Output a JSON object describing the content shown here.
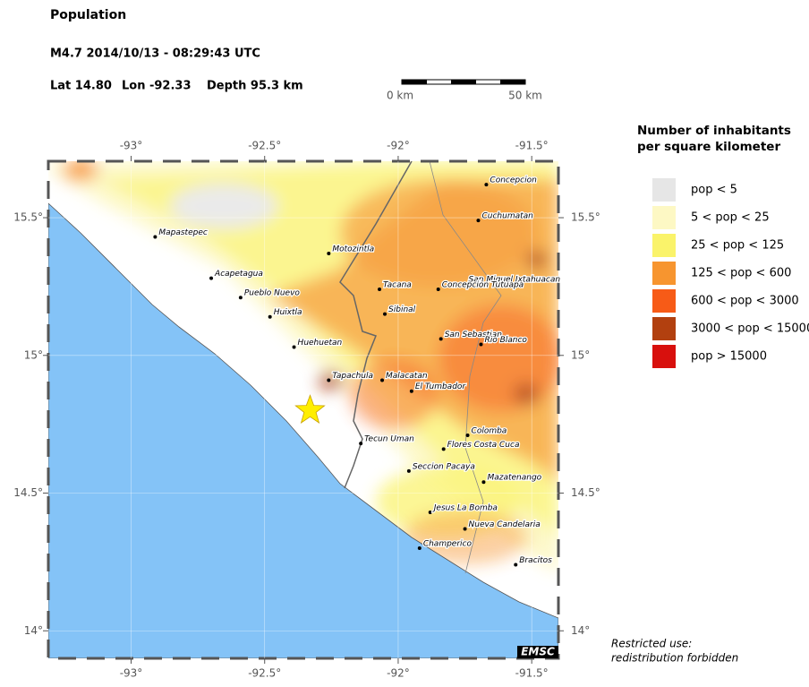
{
  "header": {
    "title": "Population",
    "event": "M4.7  2014/10/13 - 08:29:43 UTC",
    "lat": "Lat 14.80",
    "lon": "Lon -92.33",
    "depth": "Depth  95.3 km"
  },
  "scale_bar": {
    "start": "0 km",
    "end": "50 km"
  },
  "map": {
    "xlim": [
      -93.31,
      -91.4
    ],
    "ylim": [
      13.9,
      15.705
    ],
    "xticks": [
      {
        "value": -93,
        "label": "-93°"
      },
      {
        "value": -92.5,
        "label": "-92.5°"
      },
      {
        "value": -92,
        "label": "-92°"
      },
      {
        "value": -91.5,
        "label": "-91.5°"
      }
    ],
    "yticks": [
      {
        "value": 15.5,
        "label": "15.5°"
      },
      {
        "value": 15,
        "label": "15°"
      },
      {
        "value": 14.5,
        "label": "14.5°"
      },
      {
        "value": 14,
        "label": "14°"
      }
    ],
    "epicenter": {
      "lon": -92.33,
      "lat": 14.8,
      "color": "#ffee00"
    },
    "cities": [
      {
        "name": "Mapastepec",
        "lon": -92.91,
        "lat": 15.43
      },
      {
        "name": "Acapetagua",
        "lon": -92.7,
        "lat": 15.28
      },
      {
        "name": "Pueblo Nuevo",
        "lon": -92.59,
        "lat": 15.21
      },
      {
        "name": "Huixtla",
        "lon": -92.48,
        "lat": 15.14
      },
      {
        "name": "Huehuetan",
        "lon": -92.39,
        "lat": 15.03
      },
      {
        "name": "Tapachula",
        "lon": -92.26,
        "lat": 14.91
      },
      {
        "name": "Motozintla",
        "lon": -92.26,
        "lat": 15.37
      },
      {
        "name": "Tacana",
        "lon": -92.07,
        "lat": 15.24
      },
      {
        "name": "Sibinal",
        "lon": -92.05,
        "lat": 15.15
      },
      {
        "name": "Malacatan",
        "lon": -92.06,
        "lat": 14.91
      },
      {
        "name": "El Tumbador",
        "lon": -91.95,
        "lat": 14.87
      },
      {
        "name": "Tecun Uman",
        "lon": -92.14,
        "lat": 14.68
      },
      {
        "name": "Colomba",
        "lon": -91.74,
        "lat": 14.71
      },
      {
        "name": "Flores Costa Cuca",
        "lon": -91.83,
        "lat": 14.66
      },
      {
        "name": "Seccion Pacaya",
        "lon": -91.96,
        "lat": 14.58
      },
      {
        "name": "Mazatenango",
        "lon": -91.68,
        "lat": 14.54
      },
      {
        "name": "Jesus La Bomba",
        "lon": -91.88,
        "lat": 14.43
      },
      {
        "name": "Nueva Candelaria",
        "lon": -91.75,
        "lat": 14.37
      },
      {
        "name": "Champerico",
        "lon": -91.92,
        "lat": 14.3
      },
      {
        "name": "Bracitos",
        "lon": -91.56,
        "lat": 14.24
      },
      {
        "name": "Concepcion",
        "lon": -91.67,
        "lat": 15.62
      },
      {
        "name": "Cuchumatan",
        "lon": -91.7,
        "lat": 15.49
      },
      {
        "name": "San Miguel Ixtahuacan",
        "lon": -91.75,
        "lat": 15.26
      },
      {
        "name": "Concepcion Tutuapa",
        "lon": -91.85,
        "lat": 15.24
      },
      {
        "name": "San Sebastian",
        "lon": -91.84,
        "lat": 15.06
      },
      {
        "name": "Rio Blanco",
        "lon": -91.69,
        "lat": 15.04
      }
    ],
    "badge": "EMSC"
  },
  "legend": {
    "title": [
      "Number of inhabitants",
      "per square kilometer"
    ],
    "items": [
      {
        "label": "pop < 5",
        "color": "#e6e6e6"
      },
      {
        "label": "5 < pop < 25",
        "color": "#fdf8c4"
      },
      {
        "label": "25 < pop < 125",
        "color": "#faf36a"
      },
      {
        "label": "125 < pop < 600",
        "color": "#f7952f"
      },
      {
        "label": "600 < pop < 3000",
        "color": "#f75b17"
      },
      {
        "label": "3000 < pop < 15000",
        "color": "#b2400f"
      },
      {
        "label": "pop > 15000",
        "color": "#d8100d"
      }
    ]
  },
  "footer": [
    "Restricted use:",
    "redistribution forbidden"
  ]
}
